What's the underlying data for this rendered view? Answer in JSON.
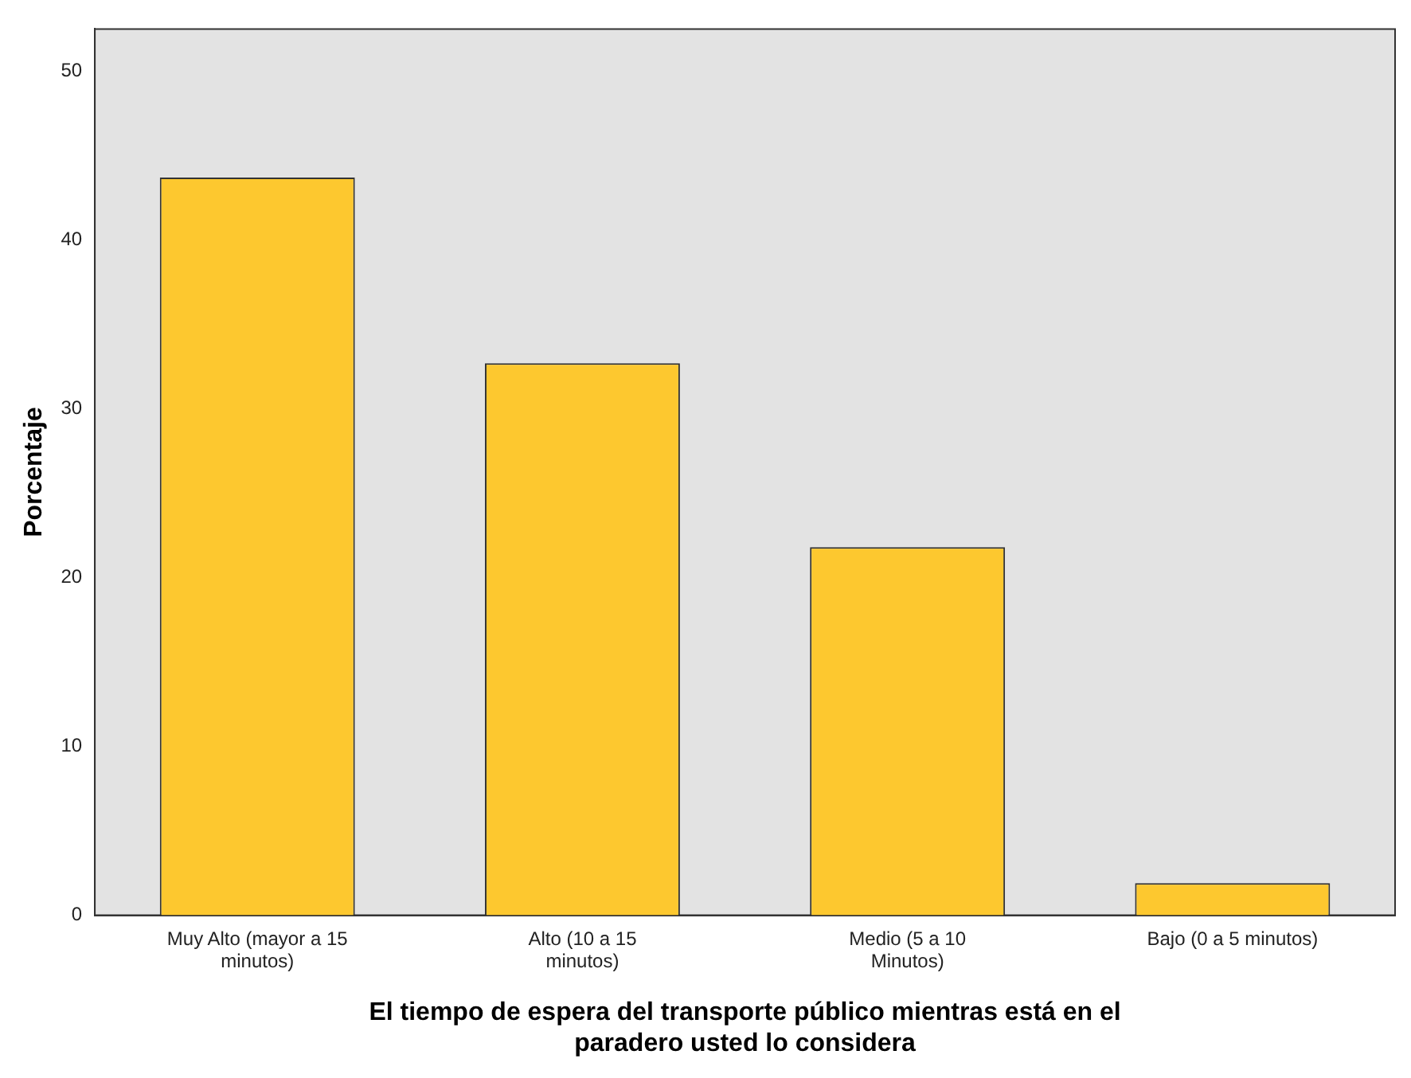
{
  "chart_data": {
    "type": "bar",
    "xlabel": "El tiempo de espera del transporte público mientras está en el paradero usted lo considera",
    "ylabel": "Porcentaje",
    "categories": [
      "Muy Alto (mayor a 15 minutos)",
      "Alto (10 a 15 minutos)",
      "Medio (5 a 10 Minutos)",
      "Bajo (0 a 5 minutos)"
    ],
    "values": [
      43.7,
      32.7,
      21.8,
      1.9
    ],
    "color": "#fdc82f",
    "ylim": [
      0,
      52.5
    ],
    "yticks": [
      0,
      10,
      20,
      30,
      40,
      50
    ],
    "grid": false,
    "legend": false
  }
}
